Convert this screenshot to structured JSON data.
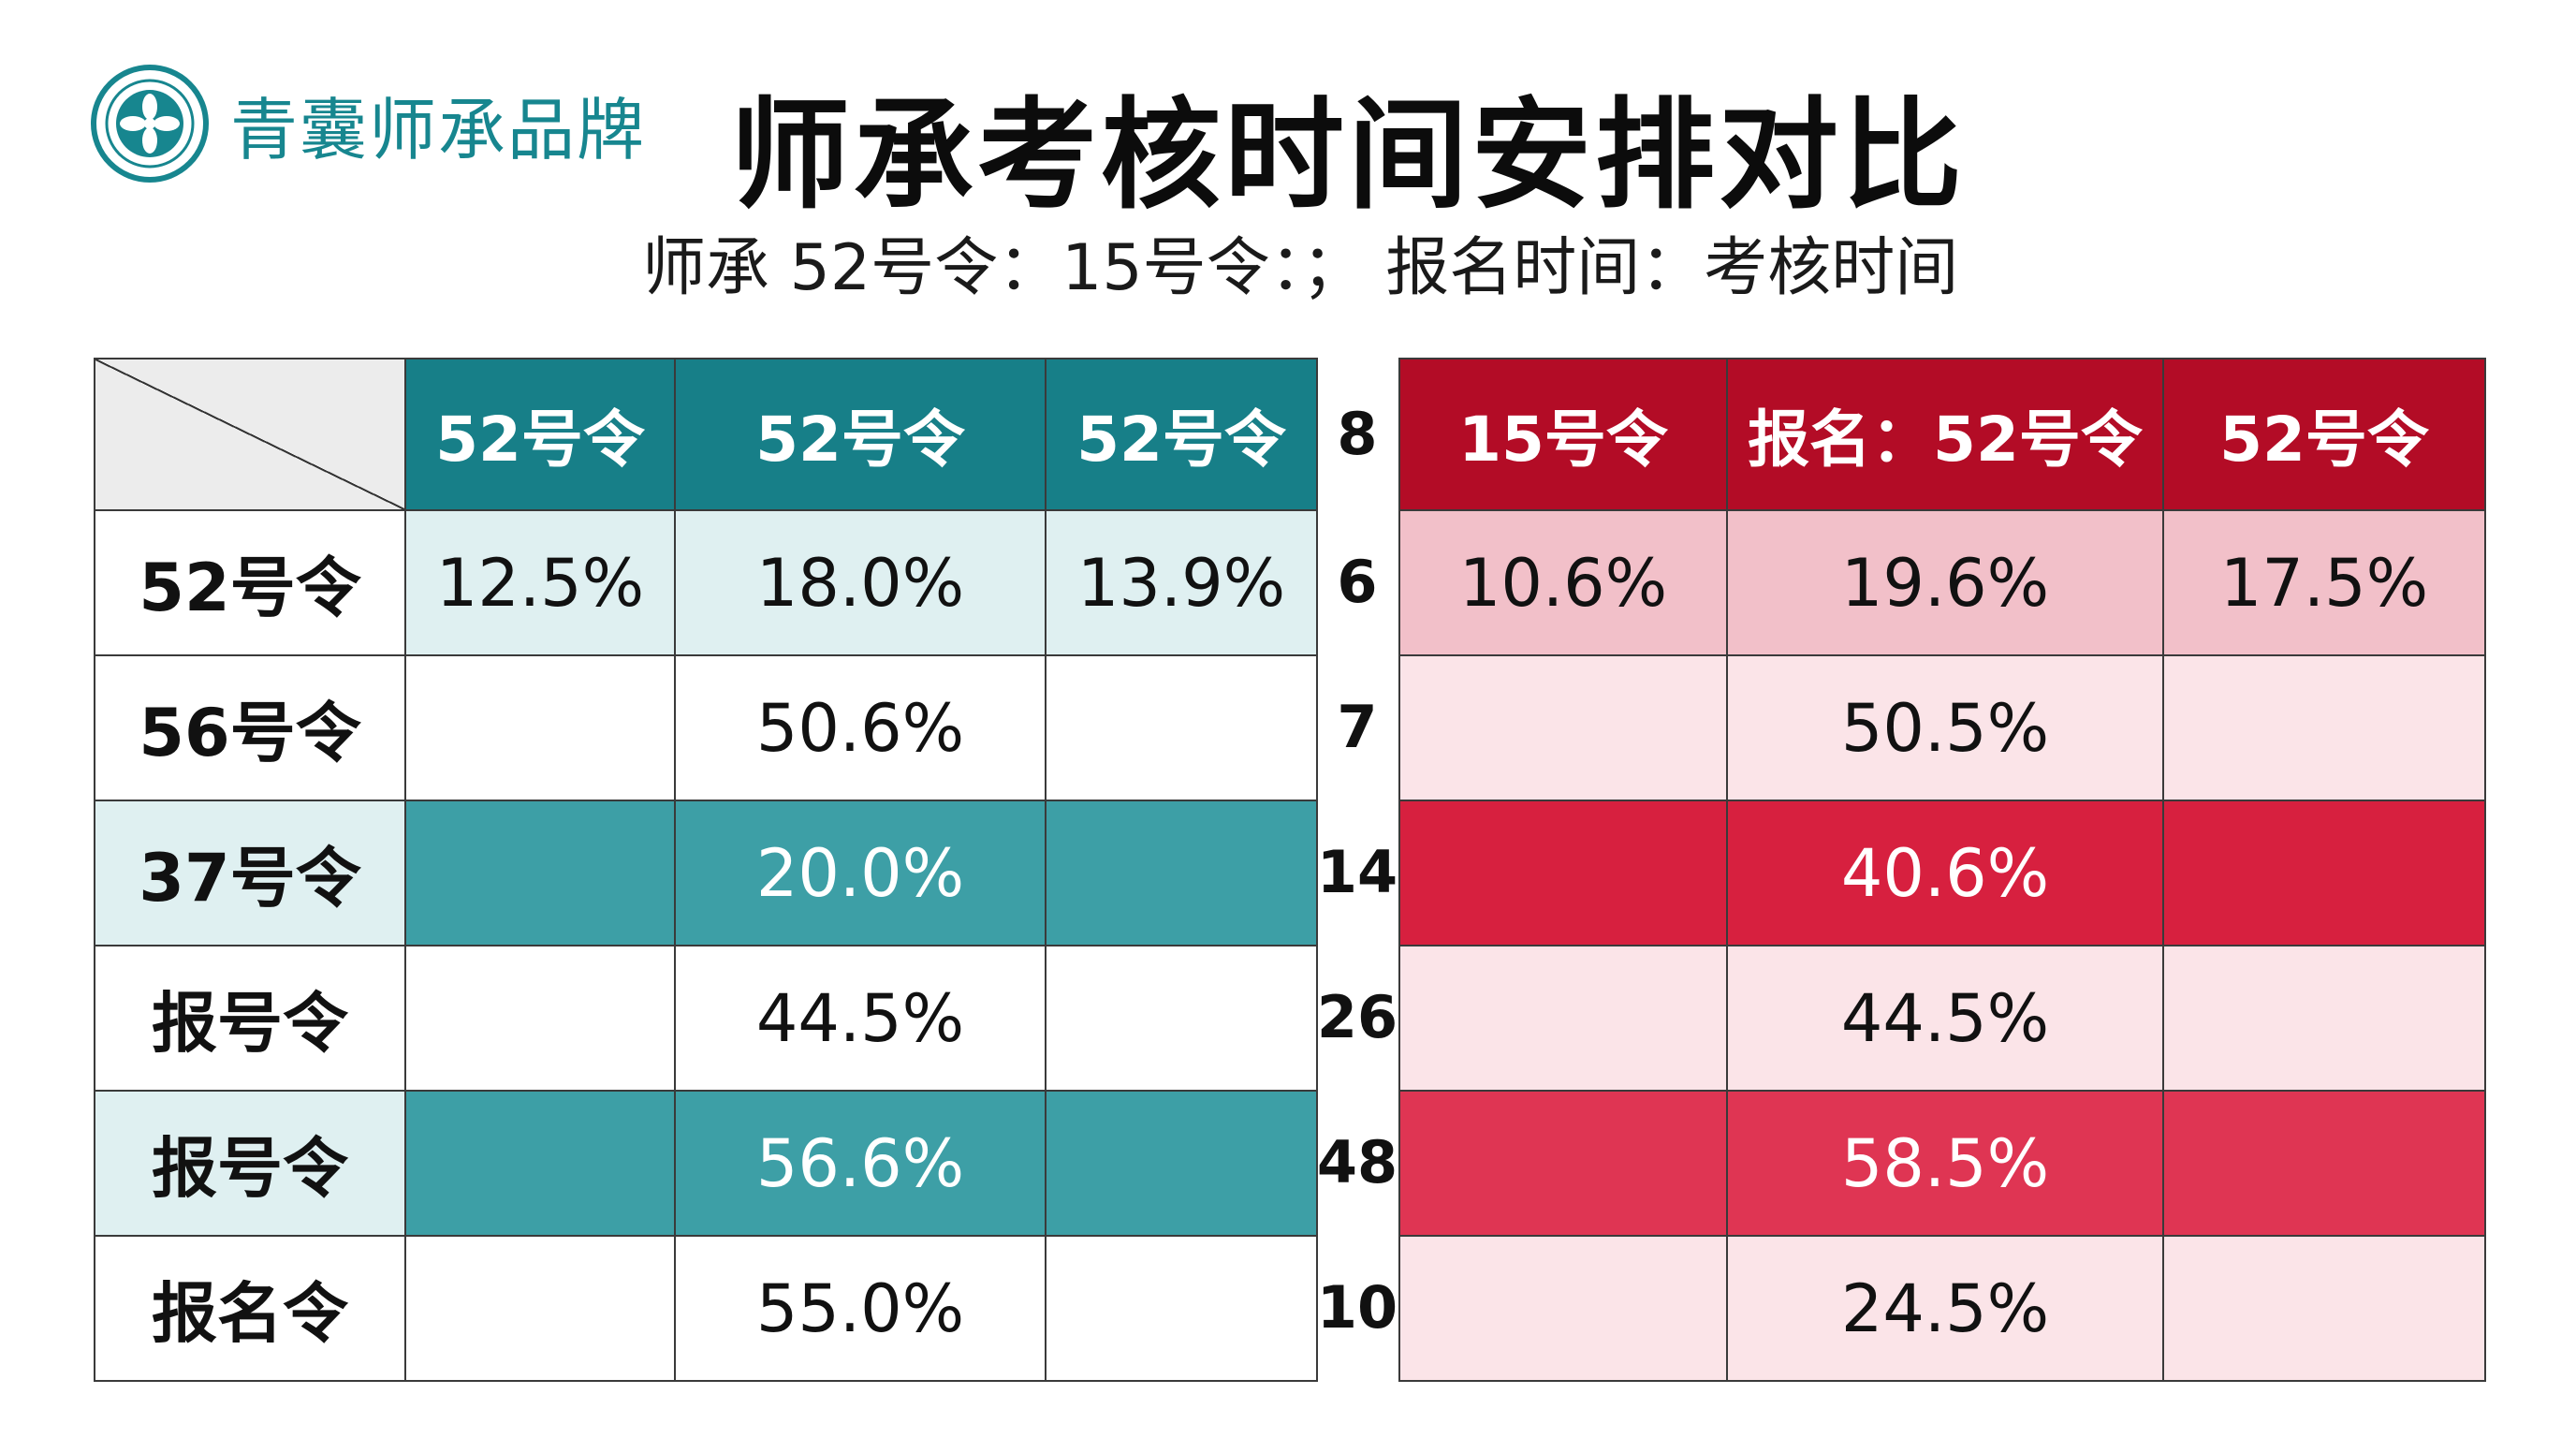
{
  "brand": {
    "name": "青囊师承品牌",
    "logo_icon": "flower-seal-icon",
    "color": "#17868f"
  },
  "title": "师承考核时间安排对比",
  "subtitle": "师承 52号令：15号令：； 报名时间：考核时间",
  "colors": {
    "teal_header": "#177f88",
    "teal_dark": "#3d9fa6",
    "teal_pale": "#dff0f1",
    "red_header": "#b30c26",
    "red_dark": "#d7203f",
    "pink": "#f2c0c9",
    "pink_light": "#fbe4e8"
  },
  "left_table": {
    "headers": [
      "52号令",
      "52号令",
      "52号令"
    ],
    "rows": [
      {
        "label": "52号令",
        "cells": [
          "12.5%",
          "18.0%",
          "13.9%"
        ]
      },
      {
        "label": "56号令",
        "cells": [
          "",
          "50.6%",
          ""
        ]
      },
      {
        "label": "37号令",
        "cells": [
          "",
          "20.0%",
          ""
        ]
      },
      {
        "label": "报号令",
        "cells": [
          "",
          "44.5%",
          ""
        ]
      },
      {
        "label": "报号令",
        "cells": [
          "",
          "56.6%",
          ""
        ]
      },
      {
        "label": "报名令",
        "cells": [
          "",
          "55.0%",
          ""
        ]
      }
    ]
  },
  "middle_numbers": [
    "8",
    "6",
    "7",
    "14",
    "26",
    "48",
    "10"
  ],
  "right_table": {
    "headers": [
      "15号令",
      "报名：52号令",
      "52号令"
    ],
    "rows": [
      {
        "cells": [
          "10.6%",
          "19.6%",
          "17.5%"
        ]
      },
      {
        "cells": [
          "",
          "50.5%",
          ""
        ]
      },
      {
        "cells": [
          "",
          "40.6%",
          ""
        ]
      },
      {
        "cells": [
          "",
          "44.5%",
          ""
        ]
      },
      {
        "cells": [
          "",
          "58.5%",
          ""
        ]
      },
      {
        "cells": [
          "",
          "24.5%",
          ""
        ]
      }
    ]
  }
}
